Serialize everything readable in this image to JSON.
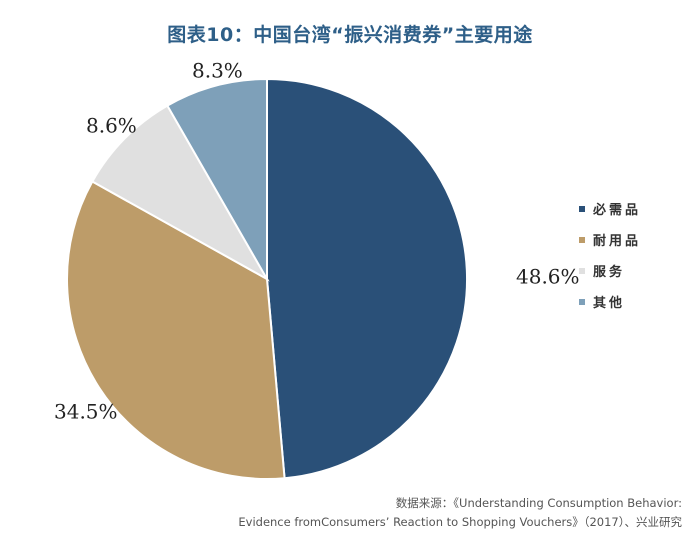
{
  "title": "图表10：中国台湾“振兴消费券”主要用途",
  "chart_data": {
    "type": "pie",
    "title": "图表10：中国台湾“振兴消费券”主要用途",
    "categories": [
      "必需品",
      "耐用品",
      "服务",
      "其他"
    ],
    "values": [
      48.6,
      34.5,
      8.6,
      8.3
    ],
    "labels": [
      "48.6%",
      "34.5%",
      "8.6%",
      "8.3%"
    ],
    "colors": [
      "#2a5078",
      "#bd9c69",
      "#e0e0e0",
      "#7ea0b9"
    ],
    "start_angle_deg": 0,
    "direction": "clockwise",
    "legend_position": "right"
  },
  "source": {
    "line1": "数据来源：《Understanding Consumption Behavior:",
    "line2": "Evidence fromConsumers’ Reaction to Shopping Vouchers》（2017）、兴业研究"
  }
}
